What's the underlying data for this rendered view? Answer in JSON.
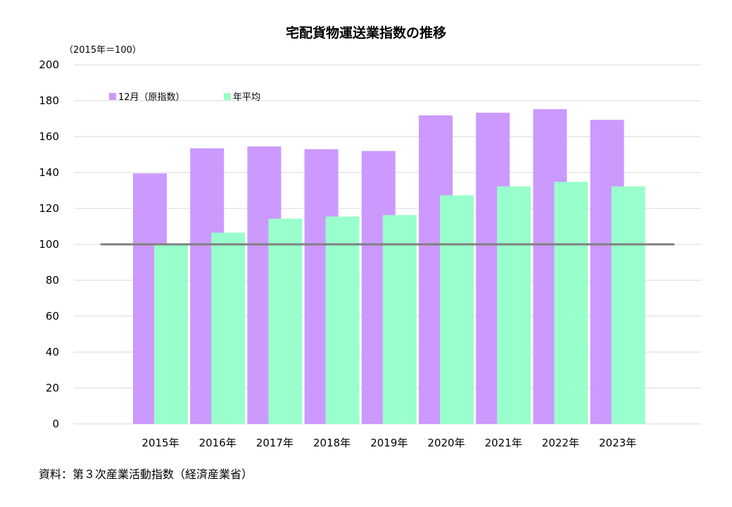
{
  "chart_data": {
    "type": "bar",
    "title": "宅配貨物運送業指数の推移",
    "unit_label": "（2015年＝100）",
    "source": "資料：第３次産業活動指数（経済産業省）",
    "categories": [
      "2015年",
      "2016年",
      "2017年",
      "2018年",
      "2019年",
      "2020年",
      "2021年",
      "2022年",
      "2023年"
    ],
    "series": [
      {
        "name": "12月（原指数）",
        "color": "#cc99ff",
        "values": [
          139.5,
          153.5,
          154.5,
          153,
          152,
          171.8,
          173.3,
          175.3,
          169.3
        ]
      },
      {
        "name": "年平均",
        "color": "#99ffcc",
        "values": [
          100,
          106.5,
          114.3,
          115.5,
          116.3,
          127.3,
          132.3,
          134.8,
          132.3
        ]
      }
    ],
    "reference_line": {
      "value": 100,
      "color": "#7f7f7f"
    },
    "ylim": [
      0,
      200
    ],
    "yticks": [
      0,
      20,
      40,
      60,
      80,
      100,
      120,
      140,
      160,
      180,
      200
    ],
    "grid": true,
    "legend_position": "top-left"
  }
}
